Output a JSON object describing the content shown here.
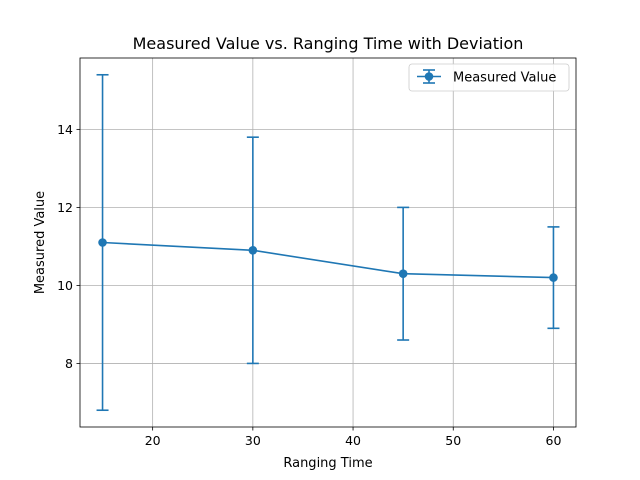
{
  "chart_data": {
    "type": "line",
    "title": "Measured Value vs. Ranging Time with Deviation",
    "xlabel": "Ranging Time",
    "ylabel": "Measured Value",
    "xlim": [
      12.75,
      62.25
    ],
    "ylim": [
      6.37,
      15.83
    ],
    "xticks": [
      20,
      30,
      40,
      50,
      60
    ],
    "yticks": [
      8,
      10,
      12,
      14
    ],
    "grid": true,
    "legend_position": "top-right",
    "series": [
      {
        "name": "Measured Value",
        "color": "#1f77b4",
        "marker": "circle",
        "x": [
          15,
          30,
          45,
          60
        ],
        "y": [
          11.1,
          10.9,
          10.3,
          10.2
        ],
        "yerr": [
          4.3,
          2.9,
          1.7,
          1.3
        ]
      }
    ]
  }
}
